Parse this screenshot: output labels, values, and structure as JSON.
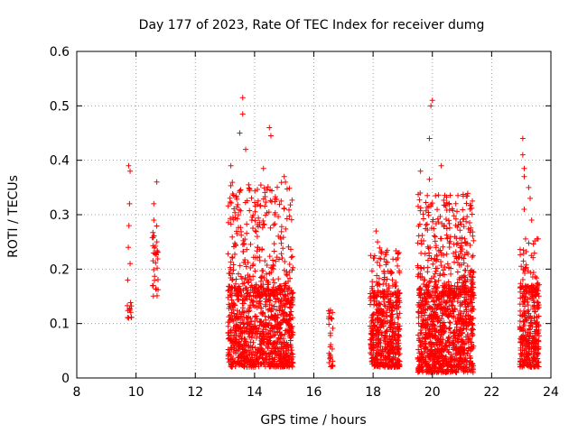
{
  "chart_data": {
    "type": "scatter",
    "title": "Day 177 of 2023, Rate Of TEC Index for receiver dumg",
    "xlabel": "GPS time / hours",
    "ylabel": "ROTI / TECUs",
    "xlim": [
      8,
      24
    ],
    "ylim": [
      0,
      0.6
    ],
    "x_ticks": [
      8,
      10,
      12,
      14,
      16,
      18,
      20,
      22,
      24
    ],
    "x_tick_labels": [
      "8",
      "10",
      "12",
      "14",
      "16",
      "18",
      "20",
      "22",
      "24"
    ],
    "y_ticks": [
      0,
      0.1,
      0.2,
      0.3,
      0.4,
      0.5,
      0.6
    ],
    "y_tick_labels": [
      "0",
      "0.1",
      "0.2",
      "0.3",
      "0.4",
      "0.5",
      "0.6"
    ],
    "grid": true,
    "marker": "+",
    "series_color": "#ff0000",
    "clusters": [
      {
        "x_range": [
          9.7,
          9.85
        ],
        "y_range": [
          0.11,
          0.14
        ],
        "density": 12,
        "outliers": [
          [
            9.75,
            0.39
          ],
          [
            9.8,
            0.38
          ],
          [
            9.78,
            0.32
          ],
          [
            9.76,
            0.28
          ],
          [
            9.74,
            0.24
          ],
          [
            9.8,
            0.21
          ],
          [
            9.72,
            0.18
          ]
        ]
      },
      {
        "x_range": [
          10.55,
          10.75
        ],
        "y_range": [
          0.15,
          0.28
        ],
        "density": 30,
        "outliers": [
          [
            10.7,
            0.36
          ],
          [
            10.6,
            0.32
          ],
          [
            10.6,
            0.29
          ]
        ]
      },
      {
        "x_range": [
          13.1,
          15.3
        ],
        "y_range": [
          0.02,
          0.17
        ],
        "density": 900,
        "outliers": [
          [
            13.6,
            0.515
          ],
          [
            13.6,
            0.485
          ],
          [
            13.5,
            0.45
          ],
          [
            14.5,
            0.46
          ],
          [
            14.55,
            0.445
          ],
          [
            13.7,
            0.42
          ],
          [
            13.2,
            0.39
          ],
          [
            14.3,
            0.385
          ],
          [
            15.0,
            0.37
          ],
          [
            13.8,
            0.355
          ]
        ]
      },
      {
        "x_range": [
          13.1,
          15.3
        ],
        "y_range": [
          0.15,
          0.36
        ],
        "density": 280,
        "outliers": []
      },
      {
        "x_range": [
          16.5,
          16.65
        ],
        "y_range": [
          0.02,
          0.13
        ],
        "density": 30,
        "outliers": []
      },
      {
        "x_range": [
          17.9,
          18.9
        ],
        "y_range": [
          0.02,
          0.16
        ],
        "density": 450,
        "outliers": [
          [
            18.1,
            0.27
          ],
          [
            18.15,
            0.25
          ]
        ]
      },
      {
        "x_range": [
          17.9,
          18.9
        ],
        "y_range": [
          0.15,
          0.24
        ],
        "density": 80,
        "outliers": []
      },
      {
        "x_range": [
          19.5,
          21.4
        ],
        "y_range": [
          0.01,
          0.17
        ],
        "density": 900,
        "outliers": [
          [
            20.0,
            0.51
          ],
          [
            19.95,
            0.5
          ],
          [
            19.9,
            0.44
          ],
          [
            20.3,
            0.39
          ],
          [
            19.6,
            0.38
          ],
          [
            19.9,
            0.365
          ],
          [
            21.35,
            0.325
          ]
        ]
      },
      {
        "x_range": [
          19.5,
          21.4
        ],
        "y_range": [
          0.15,
          0.34
        ],
        "density": 300,
        "outliers": []
      },
      {
        "x_range": [
          22.95,
          23.6
        ],
        "y_range": [
          0.02,
          0.17
        ],
        "density": 320,
        "outliers": [
          [
            23.05,
            0.44
          ],
          [
            23.05,
            0.41
          ],
          [
            23.1,
            0.385
          ],
          [
            23.1,
            0.37
          ],
          [
            23.25,
            0.35
          ],
          [
            23.3,
            0.33
          ],
          [
            23.1,
            0.31
          ],
          [
            23.35,
            0.29
          ]
        ]
      },
      {
        "x_range": [
          22.95,
          23.6
        ],
        "y_range": [
          0.15,
          0.26
        ],
        "density": 50,
        "outliers": []
      }
    ]
  }
}
